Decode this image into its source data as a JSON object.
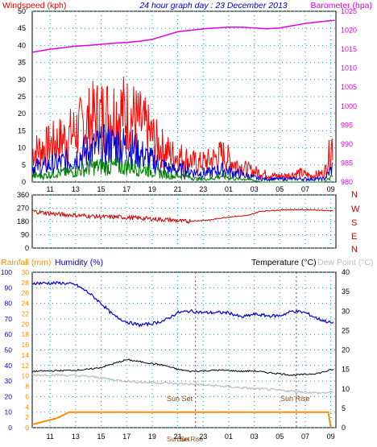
{
  "header": {
    "windspeed_label": "Windspeed (kph)",
    "title": "24 hour graph day : 23 December 2013",
    "barometer_label": "Barometer (hpa)"
  },
  "colors": {
    "wind_gust": "#ff0000",
    "wind_avg": "#0000cc",
    "wind_low": "#008000",
    "barometer": "#e000e0",
    "direction": "#cc0000",
    "humidity": "#0000cc",
    "temperature": "#000000",
    "dew_point": "#bbbbbb",
    "rainfall": "#ff8c00",
    "grid": "#00aaaa",
    "frame": "#000000"
  },
  "x_ticks": [
    "11",
    "13",
    "15",
    "17",
    "19",
    "21",
    "23",
    "01",
    "03",
    "05",
    "07",
    "09"
  ],
  "direction_letters": [
    "N",
    "W",
    "S",
    "E",
    "N"
  ],
  "sun_labels": {
    "sunset": "Sun Set",
    "sunrise": "Sun Rise",
    "bottom_left": "Sun Set",
    "bottom_right": "Sun Rise"
  },
  "bottom_header": {
    "rainfall_label": "Rainfall (mm)",
    "humidity_label": "Humidity (%)",
    "temperature_label": "Temperature (°C)",
    "dewpoint_label": "Dew Point (°C)"
  },
  "chart_data": [
    {
      "type": "line",
      "title": "24 hour graph day : 23 December 2013",
      "x_ticks": [
        "11",
        "13",
        "15",
        "17",
        "19",
        "21",
        "23",
        "01",
        "03",
        "05",
        "07",
        "09"
      ],
      "left_axis": {
        "label": "Windspeed (kph)",
        "ylim": [
          0,
          50
        ],
        "ticks": [
          0,
          5,
          10,
          15,
          20,
          25,
          30,
          35,
          40,
          45,
          50
        ]
      },
      "right_axis": {
        "label": "Barometer (hpa)",
        "ylim": [
          980,
          1025
        ],
        "ticks": [
          980,
          985,
          990,
          995,
          1000,
          1005,
          1010,
          1015,
          1020,
          1025
        ]
      },
      "series": [
        {
          "name": "Barometer",
          "axis": "right",
          "x": [
            9.6,
            11,
            12,
            13,
            14,
            15,
            16,
            17,
            18,
            19,
            20,
            21,
            22,
            23,
            24,
            25,
            26,
            27,
            28,
            29,
            30,
            31,
            32,
            33.3
          ],
          "values": [
            1014.2,
            1015.0,
            1015.4,
            1015.8,
            1016.0,
            1016.3,
            1016.6,
            1016.8,
            1017.1,
            1017.6,
            1018.6,
            1019.6,
            1020.0,
            1020.4,
            1020.6,
            1020.8,
            1020.8,
            1020.6,
            1020.4,
            1020.6,
            1021.2,
            1021.8,
            1022.2,
            1022.6
          ]
        },
        {
          "name": "Wind gust",
          "axis": "left",
          "x": [
            9.6,
            10.5,
            11.5,
            12.5,
            13.5,
            14.5,
            15.5,
            16.5,
            17.5,
            18.5,
            19.5,
            20.5,
            21.5,
            22.5,
            23.5,
            24.5,
            25.5,
            26.5,
            27.5,
            28.5,
            29.5,
            30.5,
            31.5,
            32.5,
            33.2
          ],
          "values": [
            10,
            11,
            13,
            15,
            18,
            21,
            22,
            23,
            21,
            17,
            12,
            9,
            8,
            6,
            7,
            9,
            6,
            4,
            3,
            2,
            2,
            3,
            2,
            3,
            14
          ]
        },
        {
          "name": "Wind average",
          "axis": "left",
          "x": [
            9.6,
            10.5,
            11.5,
            12.5,
            13.5,
            14.5,
            15.5,
            16.5,
            17.5,
            18.5,
            19.5,
            20.5,
            21.5,
            22.5,
            23.5,
            24.5,
            25.5,
            26.5,
            27.5,
            28.5,
            29.5,
            30.5,
            31.5,
            32.5,
            33.2
          ],
          "values": [
            5,
            5,
            6,
            7,
            9,
            11,
            12,
            12,
            11,
            8,
            6,
            4,
            4,
            3,
            3,
            4,
            3,
            2,
            1,
            1,
            1,
            1,
            1,
            1,
            5
          ]
        },
        {
          "name": "Wind low",
          "axis": "left",
          "x": [
            9.6,
            10.5,
            11.5,
            12.5,
            13.5,
            14.5,
            15.5,
            16.5,
            17.5,
            18.5,
            19.5,
            20.5,
            21.5,
            22.5,
            23.5,
            24.5,
            25.5,
            26.5,
            27.5,
            28.5,
            29.5,
            30.5,
            31.5,
            32.5,
            33.2
          ],
          "values": [
            2,
            2,
            3,
            3,
            4,
            5,
            5,
            5,
            5,
            4,
            3,
            2,
            2,
            1,
            1,
            2,
            1,
            1,
            0,
            0,
            0,
            0,
            0,
            0,
            2
          ]
        }
      ]
    },
    {
      "type": "line",
      "left_axis": {
        "ylim": [
          0,
          360
        ],
        "ticks": [
          0,
          90,
          180,
          270,
          360
        ]
      },
      "series": [
        {
          "name": "Wind direction",
          "x": [
            9.6,
            10.5,
            11.5,
            12.5,
            13.5,
            14.5,
            15.5,
            16.5,
            17.5,
            18.5,
            19.5,
            20.5,
            21.5,
            22.5,
            23.5,
            24.5,
            25.5,
            26.5,
            27.5,
            28.5,
            29.5,
            30.5,
            31.5,
            32.5,
            33.2
          ],
          "values": [
            250,
            240,
            230,
            225,
            220,
            215,
            210,
            210,
            205,
            200,
            195,
            190,
            180,
            185,
            190,
            205,
            215,
            220,
            250,
            255,
            260,
            260,
            260,
            255,
            250
          ]
        }
      ]
    },
    {
      "type": "line",
      "axes": {
        "rainfall": {
          "label": "Rainfall (mm)",
          "ylim": [
            0,
            100
          ],
          "ticks": [
            0,
            10,
            20,
            30,
            40,
            50,
            60,
            70,
            80,
            90,
            100
          ]
        },
        "humidity": {
          "label": "Humidity (%)",
          "ylim": [
            0,
            30
          ],
          "ticks": [
            0,
            2,
            4,
            6,
            8,
            10,
            12,
            14,
            16,
            18,
            20,
            22,
            24,
            26,
            28,
            30
          ]
        },
        "temperature": {
          "label": "Temperature (°C)",
          "ylim": [
            0,
            40
          ],
          "ticks": [
            0,
            5,
            10,
            15,
            20,
            25,
            30,
            35,
            40
          ]
        }
      },
      "series": [
        {
          "name": "Humidity",
          "axis": "rainfall",
          "x": [
            9.6,
            11,
            12,
            13,
            14,
            15,
            16,
            17,
            18,
            19,
            20,
            21,
            22,
            23,
            24,
            25,
            26,
            27,
            28,
            29,
            30,
            31,
            32,
            33.2
          ],
          "values": [
            93,
            93,
            93,
            92,
            87,
            80,
            72,
            68,
            66,
            67,
            69,
            74,
            75,
            74,
            74,
            74,
            71,
            73,
            72,
            72,
            75,
            74,
            70,
            67
          ]
        },
        {
          "name": "Temperature",
          "axis": "temperature",
          "x": [
            9.6,
            11,
            12,
            13,
            14,
            15,
            16,
            17,
            18,
            19,
            20,
            21,
            22,
            23,
            24,
            25,
            26,
            27,
            28,
            29,
            30,
            31,
            32,
            33.2
          ],
          "values": [
            14.5,
            14.6,
            14.7,
            14.8,
            15.0,
            15.5,
            16.5,
            17.5,
            17.0,
            16.5,
            16.0,
            15.0,
            14.5,
            14.6,
            14.8,
            14.7,
            14.5,
            14.6,
            14.2,
            13.9,
            13.5,
            13.7,
            14.0,
            15.0
          ]
        },
        {
          "name": "Dew Point",
          "axis": "temperature",
          "x": [
            9.6,
            11,
            12,
            13,
            14,
            15,
            16,
            17,
            18,
            19,
            20,
            21,
            22,
            23,
            24,
            25,
            26,
            27,
            28,
            29,
            30,
            31,
            32,
            33.2
          ],
          "values": [
            13.5,
            13.6,
            13.5,
            13.4,
            13.2,
            12.8,
            12.3,
            12.0,
            11.7,
            11.6,
            11.5,
            11.3,
            11.2,
            11.0,
            10.8,
            10.5,
            10.3,
            10.0,
            9.9,
            9.6,
            9.4,
            9.2,
            8.9,
            9.1
          ]
        },
        {
          "name": "Rainfall",
          "axis": "rainfall",
          "x": [
            9.6,
            10.5,
            11.5,
            12.5,
            15,
            18,
            21,
            24,
            27,
            30,
            32.8,
            33.0
          ],
          "values": [
            2,
            4,
            6,
            10,
            10,
            10,
            10,
            10,
            10,
            10,
            10,
            0
          ]
        }
      ]
    }
  ]
}
